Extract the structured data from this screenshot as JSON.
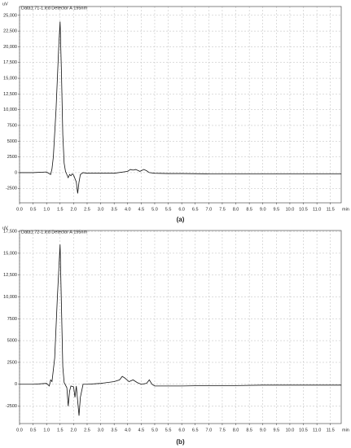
{
  "chart_data": [
    {
      "type": "line",
      "caption": "(a)",
      "y_label": "uV",
      "x_unit": "min",
      "grid": true,
      "x": [
        0,
        0.5,
        1.0,
        1.15,
        1.2,
        1.25,
        1.35,
        1.45,
        1.5,
        1.55,
        1.6,
        1.65,
        1.7,
        1.75,
        1.8,
        1.85,
        1.9,
        1.95,
        2.0,
        2.1,
        2.15,
        2.2,
        2.25,
        2.35,
        2.5,
        3.0,
        3.5,
        4.0,
        4.1,
        4.2,
        4.3,
        4.45,
        4.6,
        4.7,
        4.8,
        5.0,
        5.5,
        6,
        7,
        8,
        9,
        10,
        11,
        11.9
      ],
      "series": [
        {
          "name": "Data1.71-1.lcd Detector A 195nm",
          "color": "#111111",
          "values": [
            0,
            0,
            100,
            -300,
            600,
            2500,
            10000,
            20000,
            24000,
            16000,
            6000,
            1500,
            200,
            -300,
            -800,
            -300,
            -500,
            -200,
            -400,
            -1500,
            -3300,
            -1500,
            -300,
            0,
            -100,
            -100,
            -100,
            200,
            500,
            400,
            500,
            200,
            500,
            300,
            0,
            -100,
            -150,
            -150,
            -200,
            -200,
            -200,
            -200,
            -200,
            -200
          ]
        }
      ],
      "xlim": [
        0,
        11.9
      ],
      "ylim": [
        -4800,
        26400
      ],
      "xticks": [
        {
          "value": 0,
          "label": "0.0"
        },
        0.5,
        {
          "value": 1,
          "label": "1.0"
        },
        1.5,
        {
          "value": 2,
          "label": "2.0"
        },
        2.5,
        {
          "value": 3,
          "label": "3.0"
        },
        3.5,
        {
          "value": 4,
          "label": "4.0"
        },
        4.5,
        {
          "value": 5,
          "label": "5.0"
        },
        5.5,
        {
          "value": 6,
          "label": "6.0"
        },
        6.5,
        {
          "value": 7,
          "label": "7.0"
        },
        7.5,
        {
          "value": 8,
          "label": "8.0"
        },
        8.5,
        {
          "value": 9,
          "label": "9.0"
        },
        9.5,
        {
          "value": 10,
          "label": "10.0"
        },
        10.5,
        {
          "value": 11,
          "label": "11.0"
        },
        11.5
      ],
      "yticks": [
        -2500,
        0,
        2500,
        5000,
        7500,
        {
          "value": 10000,
          "label": "10,000"
        },
        {
          "value": 12500,
          "label": "12,500"
        },
        {
          "value": 15000,
          "label": "15,000"
        },
        {
          "value": 17500,
          "label": "17,500"
        },
        {
          "value": 20000,
          "label": "20,000"
        },
        {
          "value": 22500,
          "label": "22,500"
        },
        {
          "value": 25000,
          "label": "25,000"
        }
      ]
    },
    {
      "type": "line",
      "caption": "(b)",
      "y_label": "uV",
      "x_unit": "min",
      "grid": true,
      "x": [
        0,
        0.5,
        1.0,
        1.1,
        1.15,
        1.2,
        1.3,
        1.4,
        1.5,
        1.55,
        1.6,
        1.65,
        1.75,
        1.8,
        1.85,
        1.9,
        2.0,
        2.05,
        2.1,
        2.2,
        2.25,
        2.35,
        2.5,
        3.0,
        3.5,
        3.7,
        3.8,
        3.9,
        4.05,
        4.2,
        4.35,
        4.5,
        4.7,
        4.8,
        4.9,
        5.0,
        5.5,
        6,
        7,
        8,
        9,
        10,
        11,
        11.9
      ],
      "series": [
        {
          "name": "Data1.72-1.lcd Detector A 195nm",
          "color": "#111111",
          "values": [
            0,
            0,
            100,
            -200,
            500,
            300,
            3000,
            10000,
            16000,
            9000,
            2000,
            200,
            -400,
            -2500,
            -800,
            -200,
            -300,
            -1500,
            -200,
            -3600,
            -1500,
            0,
            0,
            100,
            300,
            500,
            900,
            700,
            300,
            500,
            200,
            0,
            100,
            500,
            0,
            -200,
            -200,
            -200,
            -150,
            -150,
            -100,
            -100,
            -100,
            -100
          ]
        }
      ],
      "xlim": [
        0,
        11.9
      ],
      "ylim": [
        -4500,
        17600
      ],
      "xticks": [
        {
          "value": 0,
          "label": "0.0"
        },
        0.5,
        {
          "value": 1,
          "label": "1.0"
        },
        1.5,
        {
          "value": 2,
          "label": "2.0"
        },
        2.5,
        {
          "value": 3,
          "label": "3.0"
        },
        3.5,
        {
          "value": 4,
          "label": "4.0"
        },
        4.5,
        {
          "value": 5,
          "label": "5.0"
        },
        5.5,
        {
          "value": 6,
          "label": "6.0"
        },
        6.5,
        {
          "value": 7,
          "label": "7.0"
        },
        7.5,
        {
          "value": 8,
          "label": "8.0"
        },
        8.5,
        {
          "value": 9,
          "label": "9.0"
        },
        9.5,
        {
          "value": 10,
          "label": "10.0"
        },
        10.5,
        {
          "value": 11,
          "label": "11.0"
        },
        11.5
      ],
      "yticks": [
        -2500,
        0,
        2500,
        5000,
        7500,
        {
          "value": 10000,
          "label": "10,000"
        },
        {
          "value": 12500,
          "label": "12,500"
        },
        {
          "value": 15000,
          "label": "15,000"
        },
        {
          "value": 17500,
          "label": "17,500"
        }
      ]
    }
  ]
}
